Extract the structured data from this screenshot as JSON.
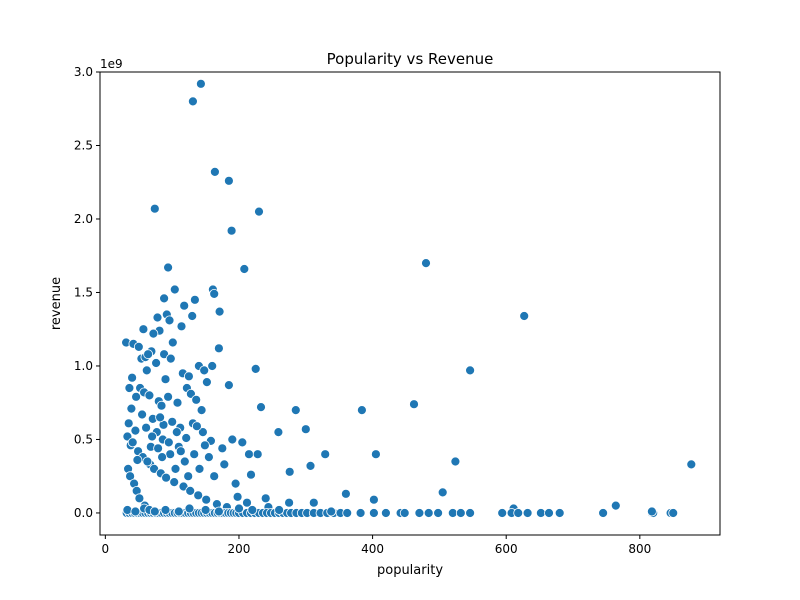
{
  "chart_data": {
    "type": "scatter",
    "title": "Popularity vs Revenue",
    "xlabel": "popularity",
    "ylabel": "revenue",
    "y_offset_label": "1e9",
    "xlim": [
      -8,
      920
    ],
    "ylim": [
      -0.15,
      3.0
    ],
    "x_ticks": [
      0,
      200,
      400,
      600,
      800
    ],
    "x_tick_labels": [
      "0",
      "200",
      "400",
      "600",
      "800"
    ],
    "y_ticks": [
      0.0,
      0.5,
      1.0,
      1.5,
      2.0,
      2.5,
      3.0
    ],
    "y_tick_labels": [
      "0.0",
      "0.5",
      "1.0",
      "1.5",
      "2.0",
      "2.5",
      "3.0"
    ],
    "grid": false,
    "marker_color": "#1f77b4",
    "marker_edge_color": "#ffffff",
    "series": [
      {
        "points": [
          [
            143,
            2.92
          ],
          [
            131,
            2.8
          ],
          [
            164,
            2.32
          ],
          [
            185,
            2.26
          ],
          [
            74,
            2.07
          ],
          [
            230,
            2.05
          ],
          [
            189,
            1.92
          ],
          [
            480,
            1.7
          ],
          [
            94,
            1.67
          ],
          [
            208,
            1.66
          ],
          [
            627,
            1.34
          ],
          [
            104,
            1.52
          ],
          [
            161,
            1.52
          ],
          [
            163,
            1.49
          ],
          [
            88,
            1.46
          ],
          [
            118,
            1.41
          ],
          [
            134,
            1.45
          ],
          [
            171,
            1.37
          ],
          [
            92,
            1.35
          ],
          [
            96,
            1.31
          ],
          [
            130,
            1.34
          ],
          [
            78,
            1.33
          ],
          [
            57,
            1.25
          ],
          [
            81,
            1.24
          ],
          [
            72,
            1.22
          ],
          [
            114,
            1.27
          ],
          [
            31,
            1.16
          ],
          [
            42,
            1.15
          ],
          [
            50,
            1.13
          ],
          [
            101,
            1.16
          ],
          [
            170,
            1.12
          ],
          [
            69,
            1.1
          ],
          [
            88,
            1.08
          ],
          [
            54,
            1.05
          ],
          [
            60,
            1.06
          ],
          [
            64,
            1.08
          ],
          [
            76,
            1.02
          ],
          [
            98,
            1.05
          ],
          [
            116,
            0.95
          ],
          [
            125,
            0.93
          ],
          [
            140,
            1.0
          ],
          [
            148,
            0.97
          ],
          [
            160,
            1.0
          ],
          [
            225,
            0.98
          ],
          [
            546,
            0.97
          ],
          [
            62,
            0.97
          ],
          [
            90,
            0.91
          ],
          [
            152,
            0.89
          ],
          [
            185,
            0.87
          ],
          [
            40,
            0.92
          ],
          [
            36,
            0.85
          ],
          [
            46,
            0.79
          ],
          [
            52,
            0.85
          ],
          [
            58,
            0.82
          ],
          [
            66,
            0.8
          ],
          [
            80,
            0.76
          ],
          [
            84,
            0.73
          ],
          [
            94,
            0.79
          ],
          [
            108,
            0.75
          ],
          [
            122,
            0.85
          ],
          [
            128,
            0.81
          ],
          [
            136,
            0.77
          ],
          [
            144,
            0.7
          ],
          [
            233,
            0.72
          ],
          [
            285,
            0.7
          ],
          [
            384,
            0.7
          ],
          [
            462,
            0.74
          ],
          [
            39,
            0.71
          ],
          [
            55,
            0.67
          ],
          [
            71,
            0.64
          ],
          [
            87,
            0.6
          ],
          [
            100,
            0.62
          ],
          [
            112,
            0.58
          ],
          [
            131,
            0.61
          ],
          [
            146,
            0.55
          ],
          [
            158,
            0.49
          ],
          [
            175,
            0.44
          ],
          [
            190,
            0.5
          ],
          [
            205,
            0.48
          ],
          [
            215,
            0.4
          ],
          [
            228,
            0.4
          ],
          [
            259,
            0.55
          ],
          [
            300,
            0.57
          ],
          [
            329,
            0.4
          ],
          [
            405,
            0.4
          ],
          [
            524,
            0.35
          ],
          [
            307,
            0.32
          ],
          [
            276,
            0.28
          ],
          [
            505,
            0.14
          ],
          [
            877,
            0.33
          ],
          [
            45,
            0.56
          ],
          [
            33,
            0.52
          ],
          [
            38,
            0.46
          ],
          [
            49,
            0.42
          ],
          [
            56,
            0.38
          ],
          [
            67,
            0.33
          ],
          [
            73,
            0.3
          ],
          [
            83,
            0.27
          ],
          [
            91,
            0.24
          ],
          [
            103,
            0.21
          ],
          [
            117,
            0.18
          ],
          [
            127,
            0.15
          ],
          [
            139,
            0.12
          ],
          [
            151,
            0.09
          ],
          [
            167,
            0.06
          ],
          [
            182,
            0.04
          ],
          [
            198,
            0.11
          ],
          [
            212,
            0.07
          ],
          [
            240,
            0.1
          ],
          [
            275,
            0.07
          ],
          [
            312,
            0.07
          ],
          [
            360,
            0.13
          ],
          [
            402,
            0.09
          ],
          [
            764,
            0.05
          ],
          [
            611,
            0.03
          ],
          [
            34,
            0.3
          ],
          [
            37,
            0.25
          ],
          [
            43,
            0.2
          ],
          [
            47,
            0.15
          ],
          [
            51,
            0.1
          ],
          [
            59,
            0.05
          ],
          [
            63,
            0.35
          ],
          [
            68,
            0.45
          ],
          [
            77,
            0.55
          ],
          [
            82,
            0.65
          ],
          [
            86,
            0.5
          ],
          [
            97,
            0.4
          ],
          [
            105,
            0.3
          ],
          [
            110,
            0.45
          ],
          [
            119,
            0.35
          ],
          [
            124,
            0.25
          ],
          [
            133,
            0.4
          ],
          [
            141,
            0.3
          ],
          [
            155,
            0.38
          ],
          [
            178,
            0.33
          ],
          [
            195,
            0.2
          ],
          [
            218,
            0.26
          ],
          [
            244,
            0.04
          ],
          [
            35,
            0.61
          ],
          [
            41,
            0.48
          ],
          [
            48,
            0.36
          ],
          [
            61,
            0.58
          ],
          [
            70,
            0.52
          ],
          [
            79,
            0.44
          ],
          [
            85,
            0.38
          ],
          [
            95,
            0.48
          ],
          [
            107,
            0.55
          ],
          [
            113,
            0.42
          ],
          [
            121,
            0.51
          ],
          [
            137,
            0.59
          ],
          [
            149,
            0.46
          ],
          [
            163,
            0.25
          ],
          [
            32,
            0.0
          ],
          [
            36,
            0.0
          ],
          [
            40,
            0.0
          ],
          [
            44,
            0.0
          ],
          [
            48,
            0.0
          ],
          [
            52,
            0.0
          ],
          [
            56,
            0.0
          ],
          [
            60,
            0.0
          ],
          [
            64,
            0.0
          ],
          [
            68,
            0.0
          ],
          [
            72,
            0.0
          ],
          [
            76,
            0.0
          ],
          [
            80,
            0.0
          ],
          [
            84,
            0.0
          ],
          [
            88,
            0.0
          ],
          [
            92,
            0.0
          ],
          [
            96,
            0.0
          ],
          [
            100,
            0.0
          ],
          [
            104,
            0.0
          ],
          [
            108,
            0.0
          ],
          [
            112,
            0.0
          ],
          [
            116,
            0.0
          ],
          [
            120,
            0.0
          ],
          [
            124,
            0.0
          ],
          [
            128,
            0.0
          ],
          [
            132,
            0.0
          ],
          [
            136,
            0.0
          ],
          [
            140,
            0.0
          ],
          [
            144,
            0.0
          ],
          [
            148,
            0.0
          ],
          [
            152,
            0.0
          ],
          [
            156,
            0.0
          ],
          [
            160,
            0.0
          ],
          [
            164,
            0.0
          ],
          [
            168,
            0.0
          ],
          [
            172,
            0.0
          ],
          [
            176,
            0.0
          ],
          [
            180,
            0.0
          ],
          [
            184,
            0.0
          ],
          [
            188,
            0.0
          ],
          [
            192,
            0.0
          ],
          [
            196,
            0.0
          ],
          [
            200,
            0.0
          ],
          [
            206,
            0.0
          ],
          [
            212,
            0.0
          ],
          [
            218,
            0.0
          ],
          [
            224,
            0.0
          ],
          [
            230,
            0.0
          ],
          [
            236,
            0.0
          ],
          [
            242,
            0.0
          ],
          [
            248,
            0.0
          ],
          [
            254,
            0.0
          ],
          [
            260,
            0.0
          ],
          [
            266,
            0.0
          ],
          [
            272,
            0.0
          ],
          [
            278,
            0.0
          ],
          [
            286,
            0.0
          ],
          [
            294,
            0.0
          ],
          [
            302,
            0.0
          ],
          [
            312,
            0.0
          ],
          [
            322,
            0.0
          ],
          [
            332,
            0.0
          ],
          [
            342,
            0.0
          ],
          [
            352,
            0.0
          ],
          [
            362,
            0.0
          ],
          [
            382,
            0.0
          ],
          [
            402,
            0.0
          ],
          [
            420,
            0.0
          ],
          [
            442,
            0.0
          ],
          [
            448,
            0.0
          ],
          [
            470,
            0.0
          ],
          [
            484,
            0.0
          ],
          [
            498,
            0.0
          ],
          [
            520,
            0.0
          ],
          [
            532,
            0.0
          ],
          [
            546,
            0.0
          ],
          [
            594,
            0.0
          ],
          [
            608,
            0.0
          ],
          [
            618,
            0.0
          ],
          [
            632,
            0.0
          ],
          [
            652,
            0.0
          ],
          [
            664,
            0.0
          ],
          [
            680,
            0.0
          ],
          [
            745,
            0.0
          ],
          [
            818,
            0.0
          ],
          [
            820,
            0.0
          ],
          [
            846,
            0.0
          ],
          [
            850,
            0.0
          ],
          [
            33,
            0.02
          ],
          [
            45,
            0.01
          ],
          [
            58,
            0.03
          ],
          [
            66,
            0.02
          ],
          [
            74,
            0.01
          ],
          [
            90,
            0.02
          ],
          [
            110,
            0.01
          ],
          [
            126,
            0.03
          ],
          [
            150,
            0.02
          ],
          [
            170,
            0.01
          ],
          [
            200,
            0.03
          ],
          [
            220,
            0.02
          ],
          [
            260,
            0.02
          ],
          [
            338,
            0.01
          ],
          [
            818,
            0.01
          ]
        ]
      }
    ]
  }
}
